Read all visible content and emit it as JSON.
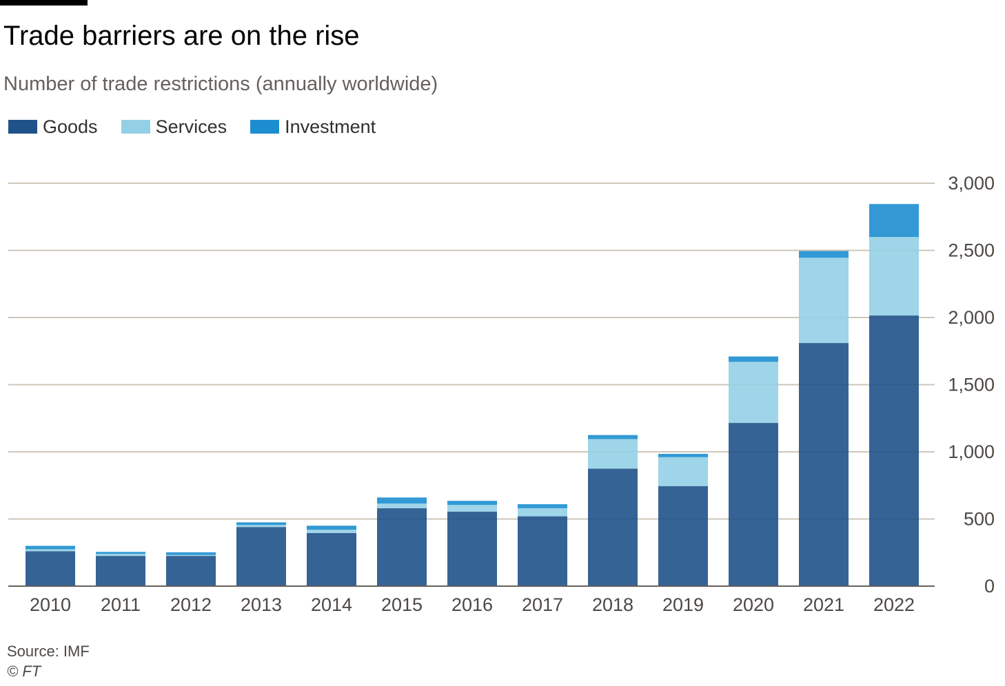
{
  "chart_data": {
    "type": "bar",
    "stacked": true,
    "title": "Trade barriers are on the rise",
    "subtitle": "Number of trade restrictions (annually worldwide)",
    "categories": [
      "2010",
      "2011",
      "2012",
      "2013",
      "2014",
      "2015",
      "2016",
      "2017",
      "2018",
      "2019",
      "2020",
      "2021",
      "2022"
    ],
    "series": [
      {
        "name": "Goods",
        "color": "#1f5289",
        "values": [
          260,
          225,
          225,
          440,
          395,
          580,
          555,
          520,
          875,
          745,
          1215,
          1810,
          2015
        ]
      },
      {
        "name": "Services",
        "color": "#93d0e6",
        "values": [
          15,
          15,
          7,
          15,
          25,
          35,
          50,
          60,
          220,
          215,
          455,
          635,
          585
        ]
      },
      {
        "name": "Investment",
        "color": "#1c8ed0",
        "values": [
          25,
          15,
          20,
          20,
          30,
          45,
          30,
          30,
          30,
          25,
          40,
          50,
          245
        ]
      }
    ],
    "xlabel": "",
    "ylabel": "",
    "ylim": [
      0,
      3000
    ],
    "yticks": [
      "0",
      "500",
      "1,000",
      "1,500",
      "2,000",
      "2,500",
      "3,000"
    ],
    "ytick_values": [
      0,
      500,
      1000,
      1500,
      2000,
      2500,
      3000
    ],
    "y_axis_side": "right",
    "grid": true,
    "legend_position": "top-left"
  },
  "footer": {
    "source": "Source: IMF",
    "copyright": "© FT"
  },
  "colors": {
    "gridline": "#cec6b9",
    "axis": "#66605c",
    "tick_text": "#4d4845",
    "subtitle": "#66605c"
  }
}
